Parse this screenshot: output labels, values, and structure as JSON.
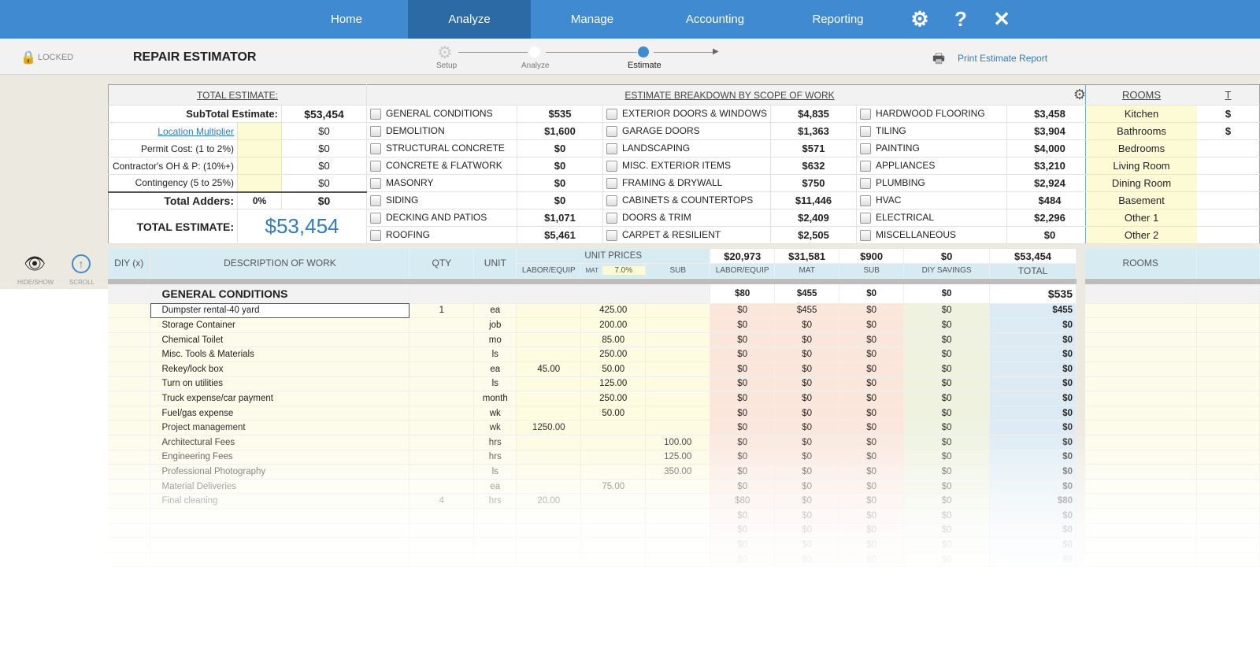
{
  "nav": {
    "tabs": [
      "Home",
      "Analyze",
      "Manage",
      "Accounting",
      "Reporting"
    ],
    "active": 1
  },
  "header": {
    "lock_label": "LOCKED",
    "title": "REPAIR ESTIMATOR",
    "steps": [
      "Setup",
      "Analyze",
      "Estimate"
    ],
    "print_label": "Print Estimate Report"
  },
  "summary": {
    "title": "TOTAL ESTIMATE:",
    "rows": [
      {
        "label": "SubTotal Estimate:",
        "value": "$53,454"
      },
      {
        "label": "Location Multiplier",
        "value": "$0"
      },
      {
        "label": "Permit Cost: (1 to 2%)",
        "value": "$0"
      },
      {
        "label": "Contractor's  OH & P: (10%+)",
        "value": "$0"
      },
      {
        "label": "Contingency (5 to 25%)",
        "value": "$0"
      }
    ],
    "adders_label": "Total Adders:",
    "adders_pct": "0%",
    "adders_value": "$0",
    "total_label": "TOTAL ESTIMATE:",
    "total_value": "$53,454"
  },
  "scope": {
    "title": "ESTIMATE BREAKDOWN BY SCOPE OF WORK",
    "items": [
      [
        "GENERAL CONDITIONS",
        "$535",
        "EXTERIOR DOORS & WINDOWS",
        "$4,835",
        "HARDWOOD FLOORING",
        "$3,458"
      ],
      [
        "DEMOLITION",
        "$1,600",
        "GARAGE DOORS",
        "$1,363",
        "TILING",
        "$3,904"
      ],
      [
        "STRUCTURAL CONCRETE",
        "$0",
        "LANDSCAPING",
        "$571",
        "PAINTING",
        "$4,000"
      ],
      [
        "CONCRETE & FLATWORK",
        "$0",
        "MISC. EXTERIOR ITEMS",
        "$632",
        "APPLIANCES",
        "$3,210"
      ],
      [
        "MASONRY",
        "$0",
        "FRAMING & DRYWALL",
        "$750",
        "PLUMBING",
        "$2,924"
      ],
      [
        "SIDING",
        "$0",
        "CABINETS & COUNTERTOPS",
        "$11,446",
        "HVAC",
        "$484"
      ],
      [
        "DECKING AND PATIOS",
        "$1,071",
        "DOORS & TRIM",
        "$2,409",
        "ELECTRICAL",
        "$2,296"
      ],
      [
        "ROOFING",
        "$5,461",
        "CARPET & RESILIENT",
        "$2,505",
        "MISCELLANEOUS",
        "$0"
      ]
    ]
  },
  "rooms": {
    "title": "ROOMS",
    "items": [
      "Kitchen",
      "Bathrooms",
      "Bedrooms",
      "Living Room",
      "Dining Room",
      "Basement",
      "Other 1",
      "Other 2"
    ],
    "col2_head": "T",
    "col2": [
      "$",
      "$",
      "",
      "",
      "",
      "",
      "",
      ""
    ]
  },
  "tools": {
    "hide_show": "HIDE/SHOW",
    "scroll": "SCROLL"
  },
  "detail": {
    "headers": {
      "diy": "DIY (x)",
      "desc": "DESCRIPTION OF WORK",
      "qty": "QTY",
      "unit": "UNIT",
      "unit_prices": "UNIT PRICES",
      "labor": "LABOR/EQUIP",
      "mat": "MAT",
      "mat_pct": "7.0%",
      "sub": "SUB",
      "labor2": "LABOR/EQUIP",
      "mat2": "MAT",
      "sub2": "SUB",
      "diy_savings": "DIY SAVINGS",
      "total": "TOTAL",
      "rooms": "ROOMS"
    },
    "totals": [
      "$20,973",
      "$31,581",
      "$900",
      "$0",
      "$53,454"
    ],
    "section": {
      "title": "GENERAL CONDITIONS",
      "totals": [
        "$80",
        "$455",
        "$0",
        "$0",
        "$535"
      ]
    },
    "rows": [
      [
        "",
        "Dumpster rental-40 yard",
        "1",
        "ea",
        "",
        "425.00",
        "",
        "$0",
        "$455",
        "$0",
        "$0",
        "$455"
      ],
      [
        "",
        "Storage Container",
        "",
        "job",
        "",
        "200.00",
        "",
        "$0",
        "$0",
        "$0",
        "$0",
        "$0"
      ],
      [
        "",
        "Chemical Toilet",
        "",
        "mo",
        "",
        "85.00",
        "",
        "$0",
        "$0",
        "$0",
        "$0",
        "$0"
      ],
      [
        "",
        "Misc. Tools & Materials",
        "",
        "ls",
        "",
        "250.00",
        "",
        "$0",
        "$0",
        "$0",
        "$0",
        "$0"
      ],
      [
        "",
        "Rekey/lock box",
        "",
        "ea",
        "45.00",
        "50.00",
        "",
        "$0",
        "$0",
        "$0",
        "$0",
        "$0"
      ],
      [
        "",
        "Turn on utilities",
        "",
        "ls",
        "",
        "125.00",
        "",
        "$0",
        "$0",
        "$0",
        "$0",
        "$0"
      ],
      [
        "",
        "Truck expense/car payment",
        "",
        "month",
        "",
        "250.00",
        "",
        "$0",
        "$0",
        "$0",
        "$0",
        "$0"
      ],
      [
        "",
        "Fuel/gas expense",
        "",
        "wk",
        "",
        "50.00",
        "",
        "$0",
        "$0",
        "$0",
        "$0",
        "$0"
      ],
      [
        "",
        "Project management",
        "",
        "wk",
        "1250.00",
        "",
        "",
        "$0",
        "$0",
        "$0",
        "$0",
        "$0"
      ],
      [
        "",
        "Architectural Fees",
        "",
        "hrs",
        "",
        "",
        "100.00",
        "$0",
        "$0",
        "$0",
        "$0",
        "$0"
      ],
      [
        "",
        "Engineering Fees",
        "",
        "hrs",
        "",
        "",
        "125.00",
        "$0",
        "$0",
        "$0",
        "$0",
        "$0"
      ],
      [
        "",
        "Professional Photography",
        "",
        "ls",
        "",
        "",
        "350.00",
        "$0",
        "$0",
        "$0",
        "$0",
        "$0"
      ],
      [
        "",
        "Material Deliveries",
        "",
        "ea",
        "",
        "75.00",
        "",
        "$0",
        "$0",
        "$0",
        "$0",
        "$0"
      ],
      [
        "",
        "Final cleaning",
        "4",
        "hrs",
        "20.00",
        "",
        "",
        "$80",
        "$0",
        "$0",
        "$0",
        "$80"
      ],
      [
        "",
        "",
        "",
        "",
        "",
        "",
        "",
        "$0",
        "$0",
        "$0",
        "$0",
        "$0"
      ],
      [
        "",
        "",
        "",
        "",
        "",
        "",
        "",
        "$0",
        "$0",
        "$0",
        "$0",
        "$0"
      ],
      [
        "",
        "",
        "",
        "",
        "",
        "",
        "",
        "$0",
        "$0",
        "$0",
        "$0",
        "$0"
      ],
      [
        "",
        "",
        "",
        "",
        "",
        "",
        "",
        "$0",
        "$0",
        "$0",
        "$0",
        "$0"
      ]
    ]
  },
  "colors": {
    "nav": "#3f8ad0",
    "nav_active": "#2c6aa5",
    "accent": "#2f7ec0",
    "input_yellow": "#fdfbd6",
    "header_blue": "#d7ebf3"
  }
}
